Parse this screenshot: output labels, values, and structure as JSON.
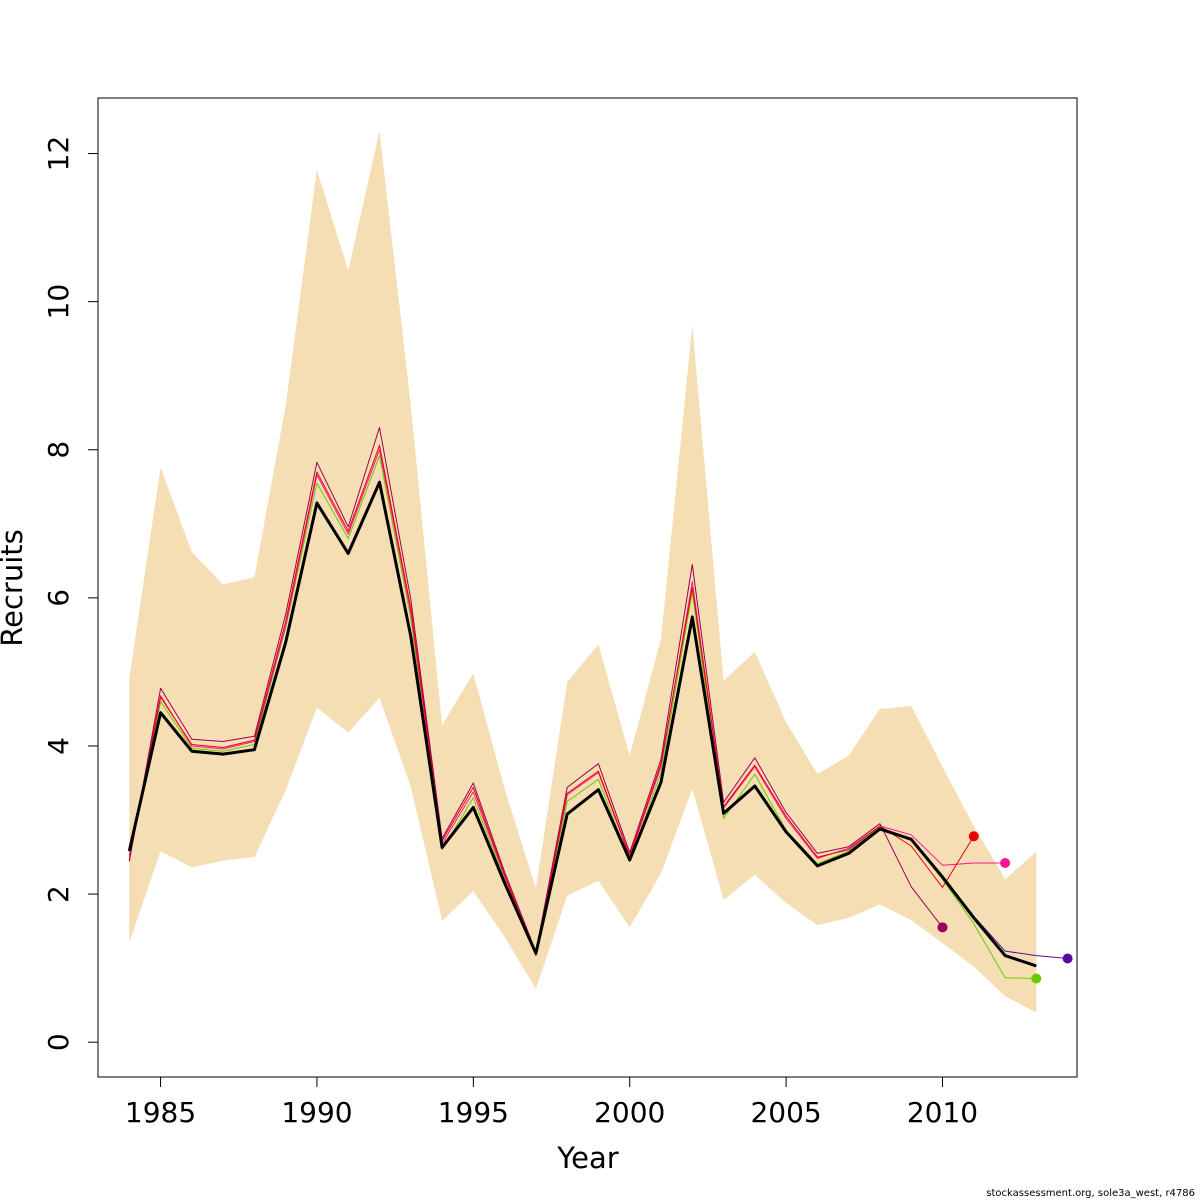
{
  "chart_data": {
    "type": "line",
    "title": "",
    "xlabel": "Year",
    "ylabel": "Recruits",
    "xlim": [
      1983,
      2014.3
    ],
    "ylim": [
      -0.47,
      12.75
    ],
    "x_ticks": [
      1985,
      1990,
      1995,
      2000,
      2005,
      2010
    ],
    "y_ticks": [
      0,
      2,
      4,
      6,
      8,
      10,
      12
    ],
    "grid": false,
    "legend": "none",
    "band": {
      "color": "#f5deb3",
      "x": [
        1984,
        1985,
        1986,
        1987,
        1988,
        1989,
        1990,
        1991,
        1992,
        1993,
        1994,
        1995,
        1996,
        1997,
        1998,
        1999,
        2000,
        2001,
        2002,
        2003,
        2004,
        2005,
        2006,
        2007,
        2008,
        2009,
        2010,
        2011,
        2012,
        2013
      ],
      "upper": [
        4.92,
        7.76,
        6.62,
        6.18,
        6.28,
        8.6,
        11.78,
        10.42,
        12.3,
        8.6,
        4.28,
        4.98,
        3.42,
        2.08,
        4.86,
        5.37,
        3.87,
        5.45,
        9.68,
        4.88,
        5.27,
        4.32,
        3.62,
        3.87,
        4.5,
        4.54,
        3.72,
        2.92,
        2.2,
        2.57
      ],
      "lower": [
        1.35,
        2.58,
        2.36,
        2.45,
        2.5,
        3.4,
        4.52,
        4.18,
        4.65,
        3.45,
        1.64,
        2.04,
        1.42,
        0.72,
        1.98,
        2.18,
        1.55,
        2.28,
        3.42,
        1.92,
        2.26,
        1.88,
        1.58,
        1.68,
        1.86,
        1.65,
        1.34,
        1.02,
        0.62,
        0.4
      ]
    },
    "x": [
      1984,
      1985,
      1986,
      1987,
      1988,
      1989,
      1990,
      1991,
      1992,
      1993,
      1994,
      1995,
      1996,
      1997,
      1998,
      1999,
      2000,
      2001,
      2002,
      2003,
      2004,
      2005,
      2006,
      2007,
      2008,
      2009,
      2010,
      2011,
      2012,
      2013,
      2014
    ],
    "series": [
      {
        "color": "#000000",
        "width": 3,
        "point": false,
        "values": [
          2.58,
          4.45,
          3.93,
          3.89,
          3.95,
          5.4,
          7.28,
          6.6,
          7.56,
          5.48,
          2.63,
          3.17,
          2.15,
          1.2,
          3.08,
          3.41,
          2.46,
          3.51,
          5.74,
          3.09,
          3.46,
          2.84,
          2.38,
          2.55,
          2.88,
          2.74,
          2.23,
          1.68,
          1.17,
          1.03,
          null
        ]
      },
      {
        "color": "#5b0c9e",
        "width": 1,
        "point": true,
        "values": [
          2.58,
          4.46,
          3.94,
          3.9,
          3.96,
          5.42,
          7.3,
          6.62,
          7.58,
          5.5,
          2.64,
          3.18,
          2.16,
          1.2,
          3.09,
          3.42,
          2.47,
          3.52,
          5.76,
          3.1,
          3.47,
          2.85,
          2.39,
          2.56,
          2.88,
          2.75,
          2.25,
          1.7,
          1.23,
          1.17,
          1.13
        ]
      },
      {
        "color": "#66cc00",
        "width": 1,
        "point": true,
        "values": [
          2.5,
          4.6,
          3.97,
          3.93,
          4.02,
          5.6,
          7.55,
          6.8,
          7.92,
          5.72,
          2.6,
          3.3,
          2.2,
          1.17,
          3.25,
          3.55,
          2.44,
          3.64,
          6.08,
          3.02,
          3.62,
          2.86,
          2.41,
          2.58,
          2.9,
          2.74,
          2.2,
          1.6,
          0.87,
          0.86,
          null
        ]
      },
      {
        "color": "#ff1493",
        "width": 1,
        "point": true,
        "values": [
          2.52,
          4.68,
          4.0,
          3.96,
          4.06,
          5.62,
          7.66,
          6.86,
          8.0,
          5.8,
          2.68,
          3.38,
          2.24,
          1.17,
          3.34,
          3.64,
          2.5,
          3.72,
          6.22,
          3.16,
          3.72,
          3.02,
          2.48,
          2.62,
          2.92,
          2.8,
          2.39,
          2.42,
          2.42,
          null,
          null
        ]
      },
      {
        "color": "#ee0000",
        "width": 1,
        "point": true,
        "values": [
          2.46,
          4.66,
          4.02,
          3.98,
          4.08,
          5.68,
          7.7,
          6.9,
          8.06,
          5.86,
          2.72,
          3.44,
          2.26,
          1.18,
          3.36,
          3.66,
          2.52,
          3.76,
          6.14,
          3.18,
          3.74,
          3.05,
          2.5,
          2.6,
          2.92,
          2.65,
          2.09,
          2.78,
          null,
          null,
          null
        ]
      },
      {
        "color": "#990055",
        "width": 1,
        "point": true,
        "values": [
          2.44,
          4.78,
          4.09,
          4.06,
          4.13,
          5.78,
          7.83,
          6.96,
          8.3,
          5.98,
          2.75,
          3.5,
          2.3,
          1.22,
          3.44,
          3.76,
          2.56,
          3.82,
          6.45,
          3.24,
          3.84,
          3.1,
          2.55,
          2.64,
          2.95,
          2.1,
          1.55,
          null,
          null,
          null,
          null
        ]
      }
    ]
  },
  "footer": "stockassessment.org, sole3a_west, r4786"
}
